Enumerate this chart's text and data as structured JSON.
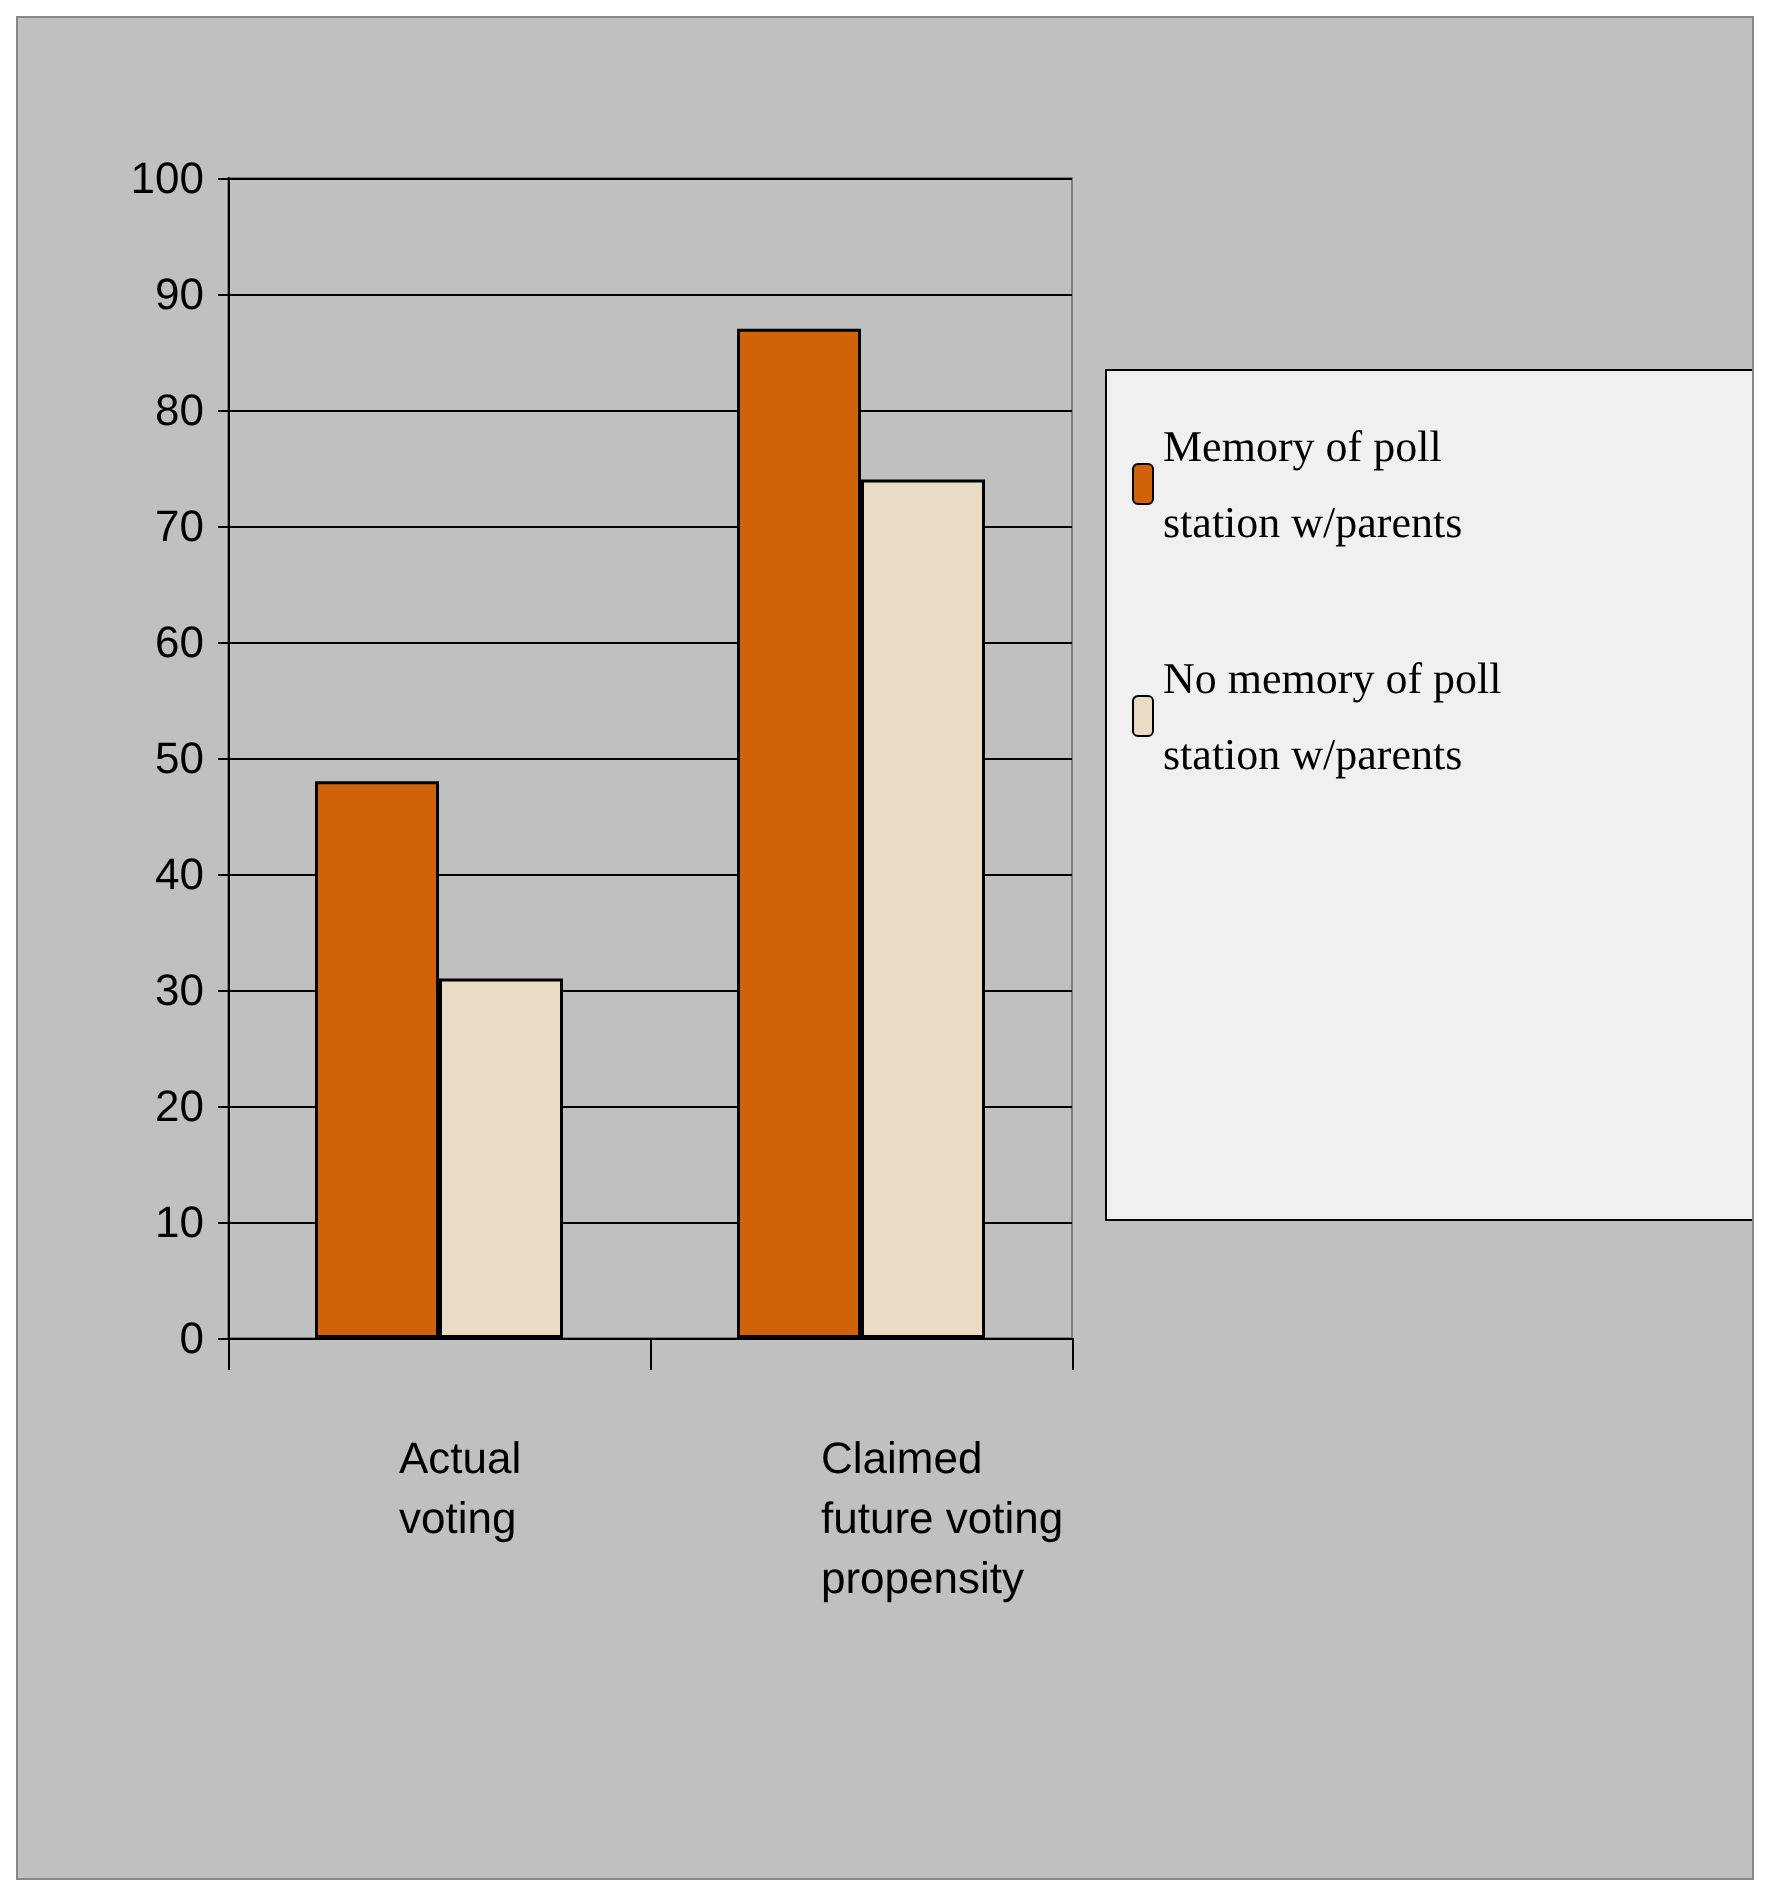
{
  "chart_data": {
    "type": "bar",
    "categories": [
      "Actual\nvoting",
      "Claimed\nfuture voting\npropensity"
    ],
    "series": [
      {
        "name": "Memory of poll\nstation w/parents",
        "color": "#d0630a",
        "values": [
          48,
          87
        ]
      },
      {
        "name": "No memory of poll\nstation w/parents",
        "color": "#e8dcc4",
        "values": [
          31,
          74
        ]
      }
    ],
    "ylim": [
      0,
      100
    ],
    "yticks": [
      0,
      10,
      20,
      30,
      40,
      50,
      60,
      70,
      80,
      90,
      100
    ],
    "grid": "y",
    "legend": "right"
  }
}
